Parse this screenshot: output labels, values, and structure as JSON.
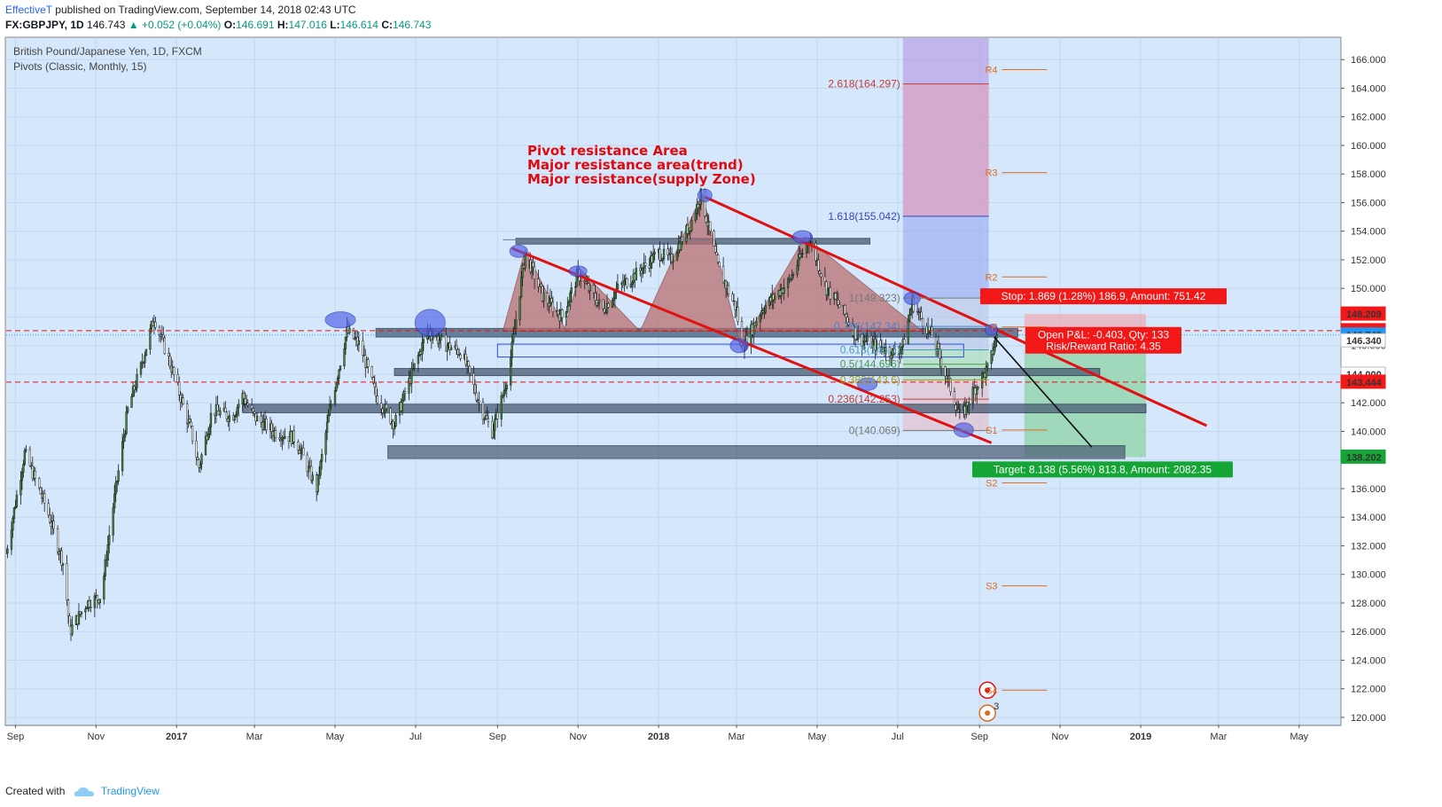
{
  "header": {
    "author": "EffectiveT",
    "published": "published on TradingView.com, September 14, 2018 02:43 UTC",
    "symbol": "FX:GBPJPY, 1D",
    "price": "146.743",
    "change": "+0.052 (+0.04%)",
    "o_label": "O:",
    "o": "146.691",
    "h_label": "H:",
    "h": "147.016",
    "l_label": "L:",
    "l": "146.614",
    "c_label": "C:",
    "c": "146.743"
  },
  "legend": {
    "instrument": "British Pound/Japanese Yen, 1D, FXCM",
    "indicator": "Pivots (Classic, Monthly, 15)"
  },
  "footer": {
    "created": "Created with",
    "brand": "TradingView"
  },
  "colors": {
    "bg": "#d4e7fb",
    "candle": "#3f8a3f",
    "wick": "#1c1c1c",
    "pattern": "#b86b6b",
    "trend": "#e31010",
    "zone": "#4a5c73",
    "stop": "#f21818",
    "target": "#15a534",
    "fib_purple": "#b18ce0",
    "fib_pink": "#e3a3b8"
  },
  "chart_data": {
    "type": "candlestick",
    "x_range": [
      "2016-08-25",
      "2019-06-01"
    ],
    "y_range": [
      119.5,
      167.5
    ],
    "price_ticks": [
      "166.000",
      "164.000",
      "162.000",
      "160.000",
      "158.000",
      "156.000",
      "154.000",
      "152.000",
      "150.000",
      "148.000",
      "146.000",
      "144.000",
      "142.000",
      "140.000",
      "138.000",
      "136.000",
      "134.000",
      "132.000",
      "130.000",
      "128.000",
      "126.000",
      "124.000",
      "122.000",
      "120.000"
    ],
    "time_ticks": [
      {
        "label": "Sep",
        "date": "2016-09-01"
      },
      {
        "label": "Nov",
        "date": "2016-11-01"
      },
      {
        "label": "2017",
        "date": "2017-01-01"
      },
      {
        "label": "Mar",
        "date": "2017-03-01"
      },
      {
        "label": "May",
        "date": "2017-05-01"
      },
      {
        "label": "Jul",
        "date": "2017-07-01"
      },
      {
        "label": "Sep",
        "date": "2017-09-01"
      },
      {
        "label": "Nov",
        "date": "2017-11-01"
      },
      {
        "label": "2018",
        "date": "2018-01-01"
      },
      {
        "label": "Mar",
        "date": "2018-03-01"
      },
      {
        "label": "May",
        "date": "2018-05-01"
      },
      {
        "label": "Jul",
        "date": "2018-07-01"
      },
      {
        "label": "Sep",
        "date": "2018-09-01"
      },
      {
        "label": "Nov",
        "date": "2018-11-01"
      },
      {
        "label": "2019",
        "date": "2019-01-01"
      },
      {
        "label": "Mar",
        "date": "2019-03-01"
      },
      {
        "label": "May",
        "date": "2019-05-01"
      }
    ],
    "price_path": [
      [
        "2016-08-25",
        131.5
      ],
      [
        "2016-09-08",
        138.5
      ],
      [
        "2016-09-25",
        134.5
      ],
      [
        "2016-10-08",
        130.5
      ],
      [
        "2016-10-12",
        126.0
      ],
      [
        "2016-10-25",
        128.0
      ],
      [
        "2016-11-05",
        128.5
      ],
      [
        "2016-11-12",
        133.5
      ],
      [
        "2016-11-25",
        141.5
      ],
      [
        "2016-12-05",
        144.5
      ],
      [
        "2016-12-15",
        148.0
      ],
      [
        "2016-12-28",
        144.5
      ],
      [
        "2017-01-12",
        140.0
      ],
      [
        "2017-01-18",
        137.5
      ],
      [
        "2017-01-28",
        141.5
      ],
      [
        "2017-02-12",
        141.0
      ],
      [
        "2017-02-20",
        142.5
      ],
      [
        "2017-03-01",
        141.0
      ],
      [
        "2017-03-15",
        140.0
      ],
      [
        "2017-04-01",
        139.5
      ],
      [
        "2017-04-17",
        136.0
      ],
      [
        "2017-04-27",
        141.5
      ],
      [
        "2017-05-10",
        147.0
      ],
      [
        "2017-05-20",
        146.0
      ],
      [
        "2017-06-01",
        142.5
      ],
      [
        "2017-06-15",
        140.5
      ],
      [
        "2017-06-28",
        144.0
      ],
      [
        "2017-07-10",
        147.0
      ],
      [
        "2017-07-25",
        146.0
      ],
      [
        "2017-08-05",
        145.5
      ],
      [
        "2017-08-20",
        141.5
      ],
      [
        "2017-08-28",
        140.0
      ],
      [
        "2017-09-05",
        142.5
      ],
      [
        "2017-09-10",
        144.5
      ],
      [
        "2017-09-22",
        152.5
      ],
      [
        "2017-10-05",
        149.5
      ],
      [
        "2017-10-20",
        148.0
      ],
      [
        "2017-11-01",
        151.0
      ],
      [
        "2017-11-20",
        148.5
      ],
      [
        "2017-12-01",
        150.0
      ],
      [
        "2017-12-15",
        151.0
      ],
      [
        "2018-01-01",
        152.5
      ],
      [
        "2018-01-10",
        152.0
      ],
      [
        "2018-01-25",
        154.5
      ],
      [
        "2018-02-02",
        156.5
      ],
      [
        "2018-02-15",
        151.5
      ],
      [
        "2018-03-01",
        148.5
      ],
      [
        "2018-03-05",
        145.8
      ],
      [
        "2018-03-20",
        148.5
      ],
      [
        "2018-04-10",
        150.5
      ],
      [
        "2018-04-25",
        153.5
      ],
      [
        "2018-05-08",
        150.0
      ],
      [
        "2018-05-20",
        148.5
      ],
      [
        "2018-06-01",
        146.5
      ],
      [
        "2018-06-15",
        146.0
      ],
      [
        "2018-06-28",
        145.5
      ],
      [
        "2018-07-05",
        146.0
      ],
      [
        "2018-07-12",
        149.0
      ],
      [
        "2018-07-28",
        146.5
      ],
      [
        "2018-08-10",
        143.0
      ],
      [
        "2018-08-18",
        140.8
      ],
      [
        "2018-08-25",
        142.5
      ],
      [
        "2018-09-01",
        143.5
      ],
      [
        "2018-09-08",
        144.5
      ],
      [
        "2018-09-14",
        146.743
      ]
    ],
    "horizontal_levels": [
      {
        "name": "stop_line",
        "price": 147.041
      },
      {
        "name": "entry",
        "price": 146.743
      },
      {
        "name": "target_line",
        "price": 143.444
      }
    ],
    "price_labels": [
      {
        "text": "148.209",
        "price": 148.209,
        "color": "#f21818"
      },
      {
        "text": "147.041",
        "price": 147.041,
        "color": "#f21818"
      },
      {
        "text": "146.743",
        "price": 146.743,
        "color": "#2196f3"
      },
      {
        "text": "146.340",
        "price": 146.34,
        "color": "#ffffff"
      },
      {
        "text": "144.000",
        "price": 144.0,
        "color": "#ffffff"
      },
      {
        "text": "143.444",
        "price": 143.444,
        "color": "#f21818"
      },
      {
        "text": "138.202",
        "price": 138.202,
        "color": "#15a534"
      }
    ],
    "fibonacci": {
      "from": "2018-07-05",
      "to": "2018-09-08",
      "levels": [
        {
          "ratio": "2.618",
          "label": "2.618(164.297)",
          "price": 164.297,
          "color": "#c43a3a"
        },
        {
          "ratio": "1.618",
          "label": "1.618(155.042)",
          "price": 155.042,
          "color": "#3946b8"
        },
        {
          "ratio": "1",
          "label": "1(149.323)",
          "price": 149.323,
          "color": "#777777"
        },
        {
          "ratio": "0.786",
          "label": "0.786(147.34)",
          "price": 147.34,
          "color": "#4a80c8"
        },
        {
          "ratio": "0.618",
          "label": "0.618(145.7)",
          "price": 145.7,
          "color": "#4aa0b4"
        },
        {
          "ratio": "0.5",
          "label": "0.5(144.696)",
          "price": 144.696,
          "color": "#4a9a4a"
        },
        {
          "ratio": "0.382",
          "label": "0.382(143.6)",
          "price": 143.6,
          "color": "#a0a020"
        },
        {
          "ratio": "0.236",
          "label": "0.236(142.253)",
          "price": 142.253,
          "color": "#c43a3a"
        },
        {
          "ratio": "0",
          "label": "0(140.069)",
          "price": 140.069,
          "color": "#777777"
        }
      ]
    },
    "pivots": [
      {
        "label": "R4",
        "price": 165.3
      },
      {
        "label": "R3",
        "price": 158.1
      },
      {
        "label": "R2",
        "price": 150.8
      },
      {
        "label": "P",
        "price": 147.3
      },
      {
        "label": "S1",
        "price": 140.1
      },
      {
        "label": "S2",
        "price": 136.4
      },
      {
        "label": "S3",
        "price": 129.2
      },
      {
        "label": "S4",
        "price": 121.9
      }
    ],
    "annotations": [
      "Pivot resistance Area",
      "Major resistance area(trend)",
      "Major resistance(supply Zone)"
    ],
    "position": {
      "stop_label": "Stop: 1.869 (1.28%) 186.9, Amount: 751.42",
      "pnl_label": "Open P&L: -0.403, Qty: 133",
      "rr_label": "Risk/Reward Ratio: 4.35",
      "target_label": "Target: 8.138 (5.56%) 813.8, Amount: 2082.35"
    },
    "marker_count": "3",
    "trendlines": [
      {
        "name": "upper-channel",
        "from": [
          "2018-02-05",
          156.4
        ],
        "to": [
          "2019-02-20",
          140.4
        ]
      },
      {
        "name": "lower-channel",
        "from": [
          "2017-09-12",
          152.8
        ],
        "to": [
          "2018-09-10",
          139.2
        ]
      }
    ],
    "zones": [
      {
        "name": "resistance-zone-upper",
        "from": "2017-09-15",
        "to": "2018-06-10",
        "top": 153.5,
        "bottom": 153.1
      },
      {
        "name": "resistance-zone-mid",
        "from": "2017-06-01",
        "to": "2018-09-30",
        "top": 147.2,
        "bottom": 146.6
      },
      {
        "name": "support-zone-a",
        "from": "2017-06-15",
        "to": "2018-12-01",
        "top": 144.4,
        "bottom": 143.9
      },
      {
        "name": "support-zone-b",
        "from": "2017-02-20",
        "to": "2019-01-05",
        "top": 141.9,
        "bottom": 141.3
      },
      {
        "name": "support-zone-c",
        "from": "2017-06-10",
        "to": "2018-12-20",
        "top": 139.0,
        "bottom": 138.1
      }
    ]
  }
}
